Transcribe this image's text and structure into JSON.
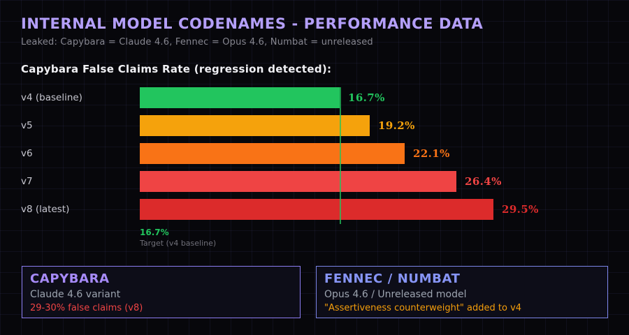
{
  "header": {
    "title": "INTERNAL MODEL CODENAMES - PERFORMANCE DATA",
    "subtitle": "Leaked: Capybara = Claude 4.6, Fennec = Opus 4.6, Numbat = unreleased"
  },
  "chart_data": {
    "type": "bar",
    "orientation": "horizontal",
    "title": "Capybara False Claims Rate (regression detected):",
    "categories": [
      "v4 (baseline)",
      "v5",
      "v6",
      "v7",
      "v8 (latest)"
    ],
    "values": [
      16.7,
      19.2,
      22.1,
      26.4,
      29.5
    ],
    "value_labels": [
      "16.7%",
      "19.2%",
      "22.1%",
      "26.4%",
      "29.5%"
    ],
    "bar_colors": [
      "#22c55e",
      "#f5a20c",
      "#f97316",
      "#ef4444",
      "#dc2b2b"
    ],
    "unit": "%",
    "xlim": [
      0,
      40
    ],
    "grid": "subtle 30px background grid",
    "target": {
      "value": 16.7,
      "label": "16.7%",
      "sublabel": "Target (v4 baseline)",
      "line_color": "#22c55e"
    }
  },
  "cards": [
    {
      "title": "CAPYBARA",
      "subtitle": "Claude 4.6 variant",
      "note": "29-30% false claims (v8)",
      "title_color": "#a78bfa",
      "border_color": "#8b7cf0",
      "note_color": "#ef4444"
    },
    {
      "title": "FENNEC / NUMBAT",
      "subtitle": "Opus 4.6 / Unreleased model",
      "note": "\"Assertiveness counterweight\" added to v4",
      "title_color": "#8795f6",
      "border_color": "#7b84e6",
      "note_color": "#f59e0b"
    }
  ],
  "colors": {
    "background": "#07070b",
    "title": "#b49ffa",
    "subtitle_text": "#86868f",
    "heading_text": "#f0f0f4",
    "category_text": "#c6c6cf",
    "target_sub_text": "#6f6f78"
  }
}
